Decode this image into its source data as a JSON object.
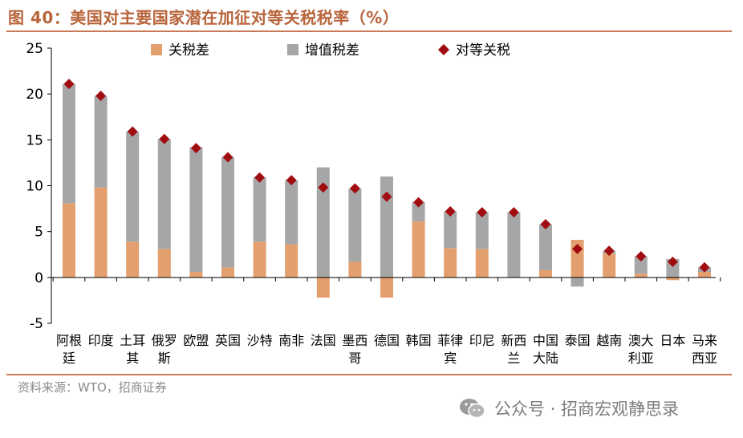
{
  "header": {
    "title": "图 40：美国对主要国家潜在加征对等关税税率（%）"
  },
  "footer": {
    "source": "资料来源：WTO，招商证券",
    "watermark": "公众号 · 招商宏观静思录",
    "watermark_icon": "wechat-icon"
  },
  "chart_data": {
    "type": "bar",
    "categories": [
      [
        "阿根",
        "廷"
      ],
      [
        "印度"
      ],
      [
        "土耳",
        "其"
      ],
      [
        "俄罗",
        "斯"
      ],
      [
        "欧盟"
      ],
      [
        "英国"
      ],
      [
        "沙特"
      ],
      [
        "南非"
      ],
      [
        "法国"
      ],
      [
        "墨西",
        "哥"
      ],
      [
        "德国"
      ],
      [
        "韩国"
      ],
      [
        "菲律",
        "宾"
      ],
      [
        "印尼"
      ],
      [
        "新西",
        "兰"
      ],
      [
        "中国",
        "大陆"
      ],
      [
        "泰国"
      ],
      [
        "越南"
      ],
      [
        "澳大",
        "利亚"
      ],
      [
        "日本"
      ],
      [
        "马来",
        "西亚"
      ]
    ],
    "series": [
      {
        "name": "关税差",
        "kind": "bar",
        "color": "#e3a06e",
        "values": [
          8.1,
          9.8,
          3.9,
          3.1,
          0.6,
          1.1,
          3.9,
          3.6,
          -2.2,
          1.7,
          -2.2,
          6.1,
          3.2,
          3.1,
          0.0,
          0.8,
          4.1,
          2.6,
          0.4,
          -0.3,
          0.6
        ]
      },
      {
        "name": "增值税差",
        "kind": "bar",
        "color": "#a6a6a6",
        "values": [
          13.0,
          10.0,
          12.0,
          12.0,
          13.6,
          12.0,
          7.0,
          7.0,
          12.0,
          8.0,
          11.0,
          2.1,
          4.0,
          4.0,
          7.1,
          5.0,
          -1.0,
          0.3,
          1.9,
          2.0,
          0.5
        ]
      },
      {
        "name": "对等关税",
        "kind": "marker",
        "color": "#a00d10",
        "values": [
          21.1,
          19.8,
          15.9,
          15.1,
          14.1,
          13.1,
          10.9,
          10.6,
          9.8,
          9.7,
          8.8,
          8.2,
          7.2,
          7.1,
          7.1,
          5.8,
          3.1,
          2.9,
          2.3,
          1.7,
          1.1
        ]
      }
    ],
    "ylim": [
      -5,
      25
    ],
    "yticks": [
      "25",
      "20",
      "15",
      "10",
      "5",
      "0",
      "-5"
    ],
    "grid": false,
    "legend_position": "top"
  }
}
